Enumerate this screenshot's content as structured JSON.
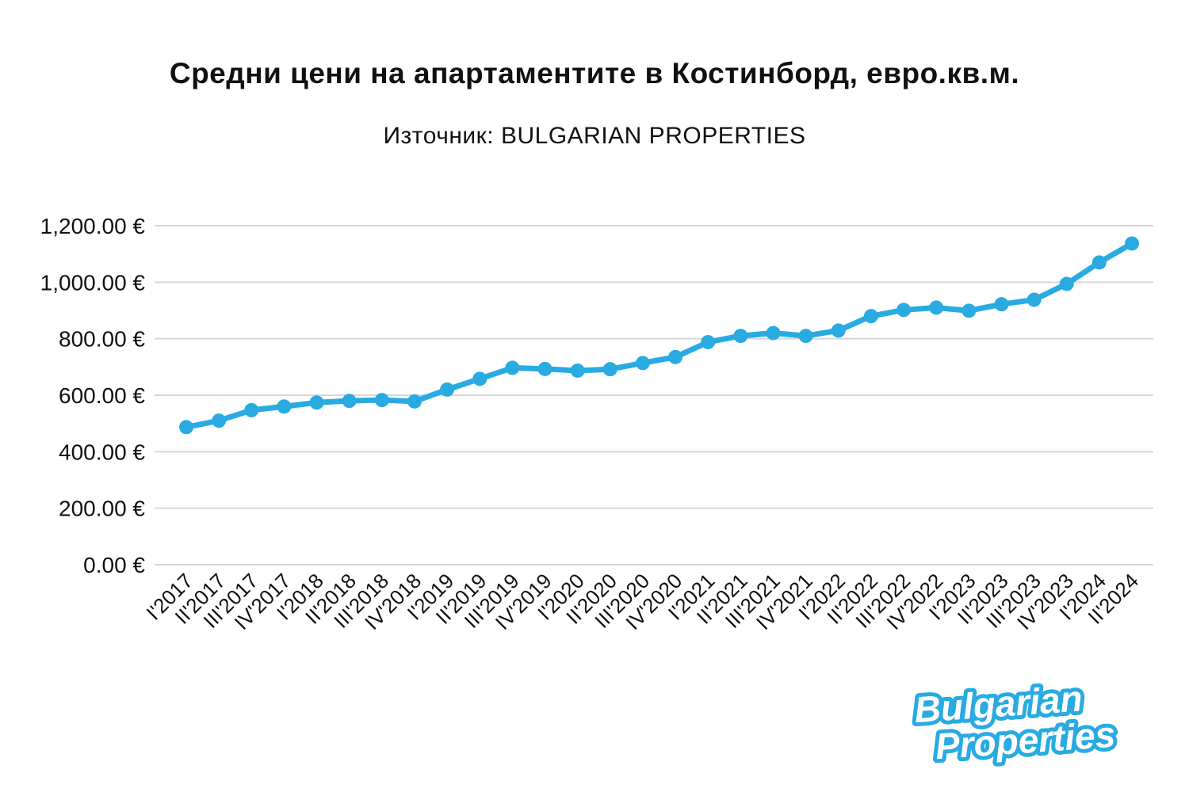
{
  "header": {
    "title": "Средни цени на апартаментите в Костинборд, евро.кв.м.",
    "subtitle": "Източник: BULGARIAN PROPERTIES"
  },
  "chart_data": {
    "type": "line",
    "title": "Средни цени на апартаментите в Костинборд, евро.кв.м.",
    "subtitle": "Източник: BULGARIAN PROPERTIES",
    "categories": [
      "I'2017",
      "II'2017",
      "III'2017",
      "IV'2017",
      "I'2018",
      "II'2018",
      "III'2018",
      "IV'2018",
      "I'2019",
      "II'2019",
      "III'2019",
      "IV'2019",
      "I'2020",
      "II'2020",
      "III'2020",
      "IV'2020",
      "I'2021",
      "II'2021",
      "III'2021",
      "IV'2021",
      "I'2022",
      "II'2022",
      "III'2022",
      "IV'2022",
      "I'2023",
      "II'2023",
      "III'2023",
      "IV'2023",
      "I'2024",
      "II'2024"
    ],
    "values": [
      487,
      510,
      547,
      560,
      574,
      580,
      583,
      578,
      620,
      658,
      697,
      693,
      687,
      692,
      714,
      735,
      788,
      810,
      820,
      810,
      829,
      880,
      902,
      910,
      899,
      922,
      938,
      994,
      1070,
      1137
    ],
    "xlabel": "",
    "ylabel": "",
    "ylim": [
      0,
      1200
    ],
    "y_ticks": [
      0,
      200,
      400,
      600,
      800,
      1000,
      1200
    ],
    "y_tick_labels": [
      "0.00 €",
      "200.00 €",
      "400.00 €",
      "600.00 €",
      "800.00 €",
      "1,000.00 €",
      "1,200.00 €"
    ],
    "grid": true,
    "legend": false,
    "line_color": "#29ABE2",
    "grid_color": "#d6d6d6",
    "text_color": "#111111"
  },
  "logo": {
    "line1": "Bulgarian",
    "line2": "Properties",
    "color": "#29ABE2"
  }
}
